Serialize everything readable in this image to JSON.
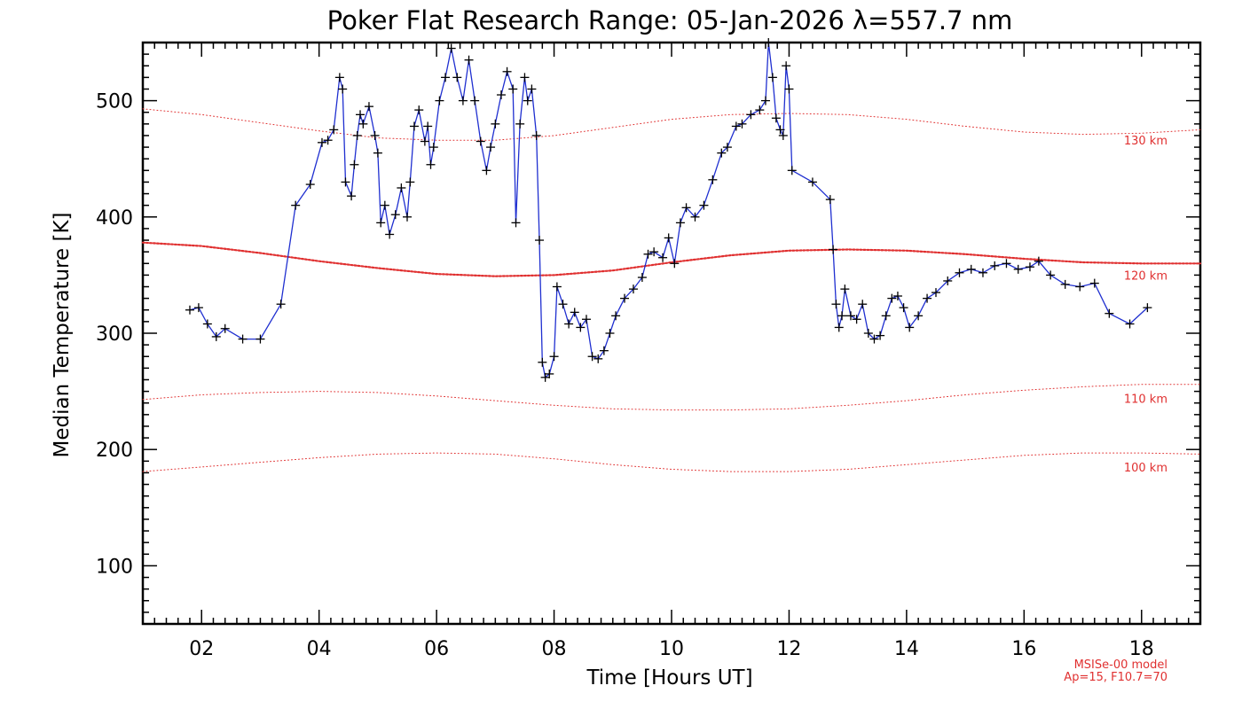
{
  "chart_data": {
    "type": "line",
    "title": "Poker Flat Research Range: 05-Jan-2026 λ=557.7 nm",
    "xlabel": "Time [Hours UT]",
    "ylabel": "Median Temperature [K]",
    "xlim": [
      1.0,
      19.0
    ],
    "ylim": [
      50,
      550
    ],
    "x_ticks": [
      2,
      4,
      6,
      8,
      10,
      12,
      14,
      16,
      18
    ],
    "x_tick_labels": [
      "02",
      "04",
      "06",
      "08",
      "10",
      "12",
      "14",
      "16",
      "18"
    ],
    "y_ticks": [
      100,
      200,
      300,
      400,
      500
    ],
    "y_tick_labels": [
      "100",
      "200",
      "300",
      "400",
      "500"
    ],
    "grid": false,
    "colors": {
      "measurement_line": "#1f2fd0",
      "measurement_markers": "#000000",
      "model_lines": "#e03030"
    },
    "series": [
      {
        "style": "line-with-plus-markers",
        "x": [
          1.8,
          1.95,
          2.1,
          2.25,
          2.4,
          2.7,
          3.0,
          3.35,
          3.6,
          3.85,
          4.05,
          4.15,
          4.25,
          4.35,
          4.4,
          4.45,
          4.55,
          4.6,
          4.65,
          4.7,
          4.75,
          4.85,
          4.95,
          5.0,
          5.05,
          5.12,
          5.2,
          5.3,
          5.4,
          5.5,
          5.55,
          5.62,
          5.7,
          5.8,
          5.85,
          5.9,
          5.95,
          6.05,
          6.15,
          6.25,
          6.35,
          6.45,
          6.55,
          6.65,
          6.75,
          6.85,
          6.92,
          7.0,
          7.1,
          7.2,
          7.3,
          7.35,
          7.42,
          7.5,
          7.55,
          7.62,
          7.7,
          7.75,
          7.8,
          7.85,
          7.92,
          8.0,
          8.05,
          8.15,
          8.25,
          8.35,
          8.45,
          8.55,
          8.65,
          8.75,
          8.85,
          8.95,
          9.05,
          9.2,
          9.35,
          9.5,
          9.6,
          9.7,
          9.85,
          9.95,
          10.05,
          10.15,
          10.25,
          10.4,
          10.55,
          10.7,
          10.85,
          10.95,
          11.1,
          11.2,
          11.35,
          11.5,
          11.6,
          11.65,
          11.72,
          11.78,
          11.85,
          11.9,
          11.95,
          12.0,
          12.05,
          12.4,
          12.7,
          12.75,
          12.8,
          12.85,
          12.9,
          12.95,
          13.05,
          13.15,
          13.25,
          13.35,
          13.45,
          13.55,
          13.65,
          13.75,
          13.85,
          13.95,
          14.05,
          14.2,
          14.35,
          14.5,
          14.7,
          14.9,
          15.1,
          15.3,
          15.5,
          15.7,
          15.9,
          16.1,
          16.25,
          16.45,
          16.7,
          16.95,
          17.2,
          17.45,
          17.8,
          18.1
        ],
        "y": [
          320,
          322,
          308,
          297,
          304,
          295,
          295,
          325,
          410,
          428,
          464,
          466,
          475,
          520,
          510,
          430,
          418,
          445,
          470,
          488,
          480,
          495,
          470,
          455,
          395,
          410,
          385,
          402,
          425,
          400,
          430,
          478,
          492,
          465,
          478,
          445,
          460,
          500,
          520,
          545,
          520,
          500,
          535,
          500,
          465,
          440,
          460,
          480,
          505,
          525,
          510,
          395,
          480,
          520,
          500,
          510,
          470,
          380,
          275,
          262,
          265,
          280,
          340,
          325,
          308,
          318,
          305,
          312,
          280,
          278,
          285,
          300,
          315,
          330,
          338,
          348,
          368,
          370,
          365,
          382,
          360,
          395,
          408,
          400,
          410,
          432,
          455,
          460,
          478,
          480,
          488,
          492,
          500,
          550,
          520,
          485,
          475,
          470,
          530,
          510,
          440,
          430,
          415,
          372,
          325,
          305,
          315,
          338,
          315,
          312,
          325,
          300,
          295,
          298,
          315,
          330,
          332,
          322,
          305,
          315,
          330,
          335,
          345,
          352,
          355,
          352,
          358,
          360,
          355,
          357,
          362,
          350,
          342,
          340,
          343,
          317,
          308,
          322
        ]
      },
      {
        "name": "130 km",
        "style": "dotted",
        "x": [
          1.0,
          2.0,
          3.0,
          4.0,
          5.0,
          6.0,
          7.0,
          8.0,
          9.0,
          10.0,
          11.0,
          12.0,
          13.0,
          14.0,
          15.0,
          16.0,
          17.0,
          18.0,
          19.0
        ],
        "y": [
          493,
          488,
          481,
          474,
          468,
          466,
          466,
          470,
          477,
          484,
          488,
          489,
          488,
          484,
          478,
          473,
          471,
          472,
          475
        ]
      },
      {
        "name": "120 km",
        "style": "dotted-bold",
        "x": [
          1.0,
          2.0,
          3.0,
          4.0,
          5.0,
          6.0,
          7.0,
          8.0,
          9.0,
          10.0,
          11.0,
          12.0,
          13.0,
          14.0,
          15.0,
          16.0,
          17.0,
          18.0,
          19.0
        ],
        "y": [
          378,
          375,
          369,
          362,
          356,
          351,
          349,
          350,
          354,
          361,
          367,
          371,
          372,
          371,
          368,
          364,
          361,
          360,
          360
        ]
      },
      {
        "name": "110 km",
        "style": "dotted",
        "x": [
          1.0,
          2.0,
          3.0,
          4.0,
          5.0,
          6.0,
          7.0,
          8.0,
          9.0,
          10.0,
          11.0,
          12.0,
          13.0,
          14.0,
          15.0,
          16.0,
          17.0,
          18.0,
          19.0
        ],
        "y": [
          243,
          247,
          249,
          250,
          249,
          246,
          242,
          238,
          235,
          234,
          234,
          235,
          238,
          242,
          247,
          251,
          254,
          256,
          256
        ]
      },
      {
        "name": "100 km",
        "style": "dotted",
        "x": [
          1.0,
          2.0,
          3.0,
          4.0,
          5.0,
          6.0,
          7.0,
          8.0,
          9.0,
          10.0,
          11.0,
          12.0,
          13.0,
          14.0,
          15.0,
          16.0,
          17.0,
          18.0,
          19.0
        ],
        "y": [
          181,
          185,
          189,
          193,
          196,
          197,
          196,
          192,
          187,
          183,
          181,
          181,
          183,
          187,
          191,
          195,
          197,
          197,
          196
        ]
      }
    ],
    "model_lines_labels": [
      {
        "name": "130 km",
        "label_at": [
          17.2,
          466
        ]
      },
      {
        "name": "120 km",
        "label_at": [
          17.2,
          350
        ]
      },
      {
        "name": "110 km",
        "label_at": [
          17.2,
          244
        ]
      },
      {
        "name": "100 km",
        "label_at": [
          17.2,
          185
        ]
      }
    ],
    "model_note": [
      "MSISe-00 model",
      "Ap=15, F10.7=70"
    ]
  }
}
